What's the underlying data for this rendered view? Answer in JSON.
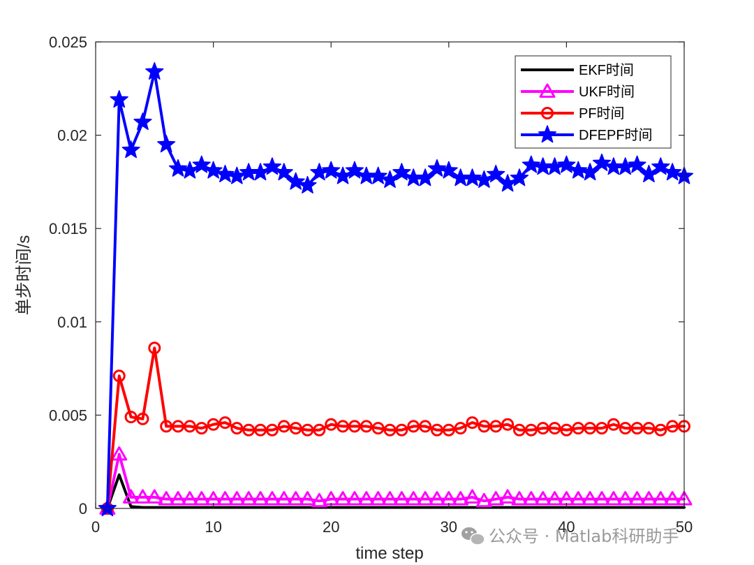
{
  "chart_data": {
    "type": "line",
    "title": "",
    "xlabel": "time step",
    "ylabel": "单步时间/s",
    "xlim": [
      0,
      50
    ],
    "ylim": [
      0,
      0.025
    ],
    "xticks": [
      "0",
      "10",
      "20",
      "30",
      "40",
      "50"
    ],
    "yticks": [
      "0",
      "0.005",
      "0.01",
      "0.015",
      "0.02",
      "0.025"
    ],
    "legend_position": "top-right",
    "x": [
      1,
      2,
      3,
      4,
      5,
      6,
      7,
      8,
      9,
      10,
      11,
      12,
      13,
      14,
      15,
      16,
      17,
      18,
      19,
      20,
      21,
      22,
      23,
      24,
      25,
      26,
      27,
      28,
      29,
      30,
      31,
      32,
      33,
      34,
      35,
      36,
      37,
      38,
      39,
      40,
      41,
      42,
      43,
      44,
      45,
      46,
      47,
      48,
      49,
      50
    ],
    "series": [
      {
        "name": "EKF时间",
        "color": "#000000",
        "marker": "none",
        "values": [
          0,
          0.0018,
          0.0001,
          5e-05,
          5e-05,
          5e-05,
          5e-05,
          5e-05,
          5e-05,
          5e-05,
          5e-05,
          5e-05,
          5e-05,
          5e-05,
          5e-05,
          5e-05,
          5e-05,
          5e-05,
          5e-05,
          5e-05,
          5e-05,
          5e-05,
          5e-05,
          5e-05,
          5e-05,
          5e-05,
          5e-05,
          5e-05,
          5e-05,
          5e-05,
          5e-05,
          5e-05,
          5e-05,
          5e-05,
          5e-05,
          5e-05,
          5e-05,
          5e-05,
          5e-05,
          5e-05,
          5e-05,
          5e-05,
          5e-05,
          5e-05,
          5e-05,
          5e-05,
          5e-05,
          5e-05,
          5e-05,
          5e-05
        ]
      },
      {
        "name": "UKF时间",
        "color": "#ff00ff",
        "marker": "triangle",
        "values": [
          0,
          0.0029,
          0.0006,
          0.0006,
          0.0006,
          0.0005,
          0.0005,
          0.0005,
          0.0005,
          0.0005,
          0.0005,
          0.0005,
          0.0005,
          0.0005,
          0.0005,
          0.0005,
          0.0005,
          0.0005,
          0.0004,
          0.0005,
          0.0005,
          0.0005,
          0.0005,
          0.0005,
          0.0005,
          0.0005,
          0.0005,
          0.0005,
          0.0005,
          0.0005,
          0.0005,
          0.0006,
          0.0004,
          0.0005,
          0.0006,
          0.0005,
          0.0005,
          0.0005,
          0.0005,
          0.0005,
          0.0005,
          0.0005,
          0.0005,
          0.0005,
          0.0005,
          0.0005,
          0.0005,
          0.0005,
          0.0005,
          0.0005
        ]
      },
      {
        "name": "PF时间",
        "color": "#ff0000",
        "marker": "circle",
        "values": [
          0,
          0.0071,
          0.0049,
          0.0048,
          0.0086,
          0.0044,
          0.0044,
          0.0044,
          0.0043,
          0.0045,
          0.0046,
          0.0043,
          0.0042,
          0.0042,
          0.0042,
          0.0044,
          0.0043,
          0.0042,
          0.0042,
          0.0045,
          0.0044,
          0.0044,
          0.0044,
          0.0043,
          0.0042,
          0.0042,
          0.0044,
          0.0044,
          0.0042,
          0.0042,
          0.0043,
          0.0046,
          0.0044,
          0.0044,
          0.0045,
          0.0042,
          0.0042,
          0.0043,
          0.0043,
          0.0042,
          0.0043,
          0.0043,
          0.0043,
          0.0045,
          0.0043,
          0.0043,
          0.0043,
          0.0042,
          0.0044,
          0.0044
        ]
      },
      {
        "name": "DFEPF时间",
        "color": "#0000ff",
        "marker": "star",
        "values": [
          0,
          0.0219,
          0.0192,
          0.0207,
          0.0234,
          0.0195,
          0.0182,
          0.0181,
          0.0184,
          0.0181,
          0.0179,
          0.0178,
          0.018,
          0.018,
          0.0183,
          0.018,
          0.0175,
          0.0173,
          0.018,
          0.0181,
          0.0178,
          0.0181,
          0.0178,
          0.0178,
          0.0176,
          0.018,
          0.0177,
          0.0177,
          0.0182,
          0.0181,
          0.0177,
          0.0177,
          0.0176,
          0.0179,
          0.0174,
          0.0177,
          0.0184,
          0.0183,
          0.0183,
          0.0184,
          0.0181,
          0.018,
          0.0185,
          0.0183,
          0.0183,
          0.0184,
          0.0179,
          0.0183,
          0.018,
          0.0178
        ]
      }
    ]
  },
  "watermark": {
    "text": "公众号 · Matlab科研助手",
    "icon": "wechat-icon"
  }
}
